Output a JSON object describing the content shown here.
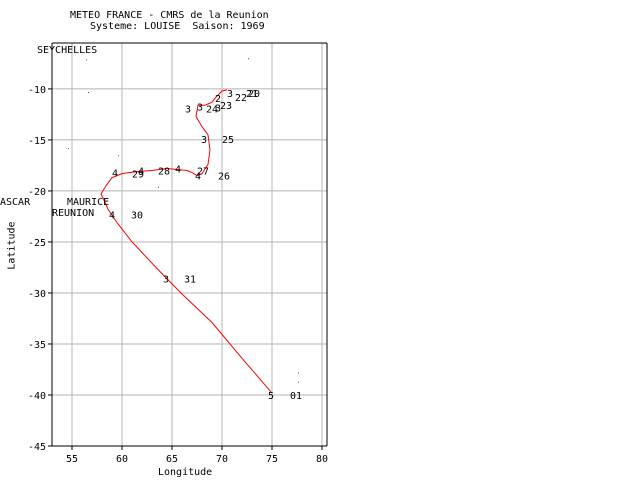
{
  "header": {
    "line1": "METEO FRANCE - CMRS de la Reunion",
    "line2": "Systeme: LOUISE  Saison: 1969"
  },
  "axes": {
    "xlabel": "Longitude",
    "ylabel": "Latitude",
    "xlim": [
      53,
      80.5
    ],
    "ylim": [
      -45,
      -5.5
    ],
    "xticks": [
      55,
      60,
      65,
      70,
      75,
      80
    ],
    "yticks": [
      -10,
      -15,
      -20,
      -25,
      -30,
      -35,
      -40,
      -45
    ],
    "grid": true
  },
  "places": [
    {
      "name": "SEYCHELLES",
      "lon": 55.5,
      "lat": -4.6
    },
    {
      "name": "MAURICE",
      "lon": 57.5,
      "lat": -20.2
    },
    {
      "name": "REUNION",
      "lon": 55.5,
      "lat": -21.1
    },
    {
      "name": "ASCAR",
      "lon": 47.5,
      "lat": -19.5
    }
  ],
  "colors": {
    "track": "#ff0000",
    "grid": "#b4b4b4",
    "axis": "#000000",
    "text": "#000000"
  },
  "chart_data": {
    "type": "map-track",
    "track": [
      [
        74.9,
        -39.7
      ],
      [
        72.0,
        -36.4
      ],
      [
        69.0,
        -32.9
      ],
      [
        66.0,
        -30.1
      ],
      [
        63.5,
        -27.6
      ],
      [
        61.0,
        -25.0
      ],
      [
        59.5,
        -23.1
      ],
      [
        58.6,
        -21.8
      ],
      [
        58.3,
        -21.1
      ],
      [
        57.9,
        -20.3
      ],
      [
        58.4,
        -19.5
      ],
      [
        59.0,
        -18.7
      ],
      [
        60.0,
        -18.3
      ],
      [
        61.5,
        -18.1
      ],
      [
        63.0,
        -18.0
      ],
      [
        64.5,
        -17.8
      ],
      [
        65.5,
        -17.9
      ],
      [
        66.5,
        -18.0
      ],
      [
        67.0,
        -18.2
      ],
      [
        67.5,
        -18.5
      ],
      [
        68.0,
        -18.3
      ],
      [
        68.6,
        -17.4
      ],
      [
        68.8,
        -16.0
      ],
      [
        68.6,
        -14.5
      ],
      [
        68.0,
        -13.7
      ],
      [
        67.4,
        -12.7
      ],
      [
        67.6,
        -11.6
      ],
      [
        68.3,
        -11.6
      ],
      [
        69.0,
        -11.3
      ],
      [
        69.4,
        -10.8
      ],
      [
        70.0,
        -10.2
      ],
      [
        70.5,
        -10.1
      ]
    ],
    "time_labels": [
      {
        "text": "5",
        "lon": 74.9,
        "lat": -40.0
      },
      {
        "text": "3",
        "lon": 64.4,
        "lat": -28.6
      },
      {
        "text": "4",
        "lon": 59.0,
        "lat": -22.3
      },
      {
        "text": "4",
        "lon": 59.3,
        "lat": -18.2
      },
      {
        "text": "4",
        "lon": 61.9,
        "lat": -18.0
      },
      {
        "text": "4",
        "lon": 65.6,
        "lat": -17.8
      },
      {
        "text": "4",
        "lon": 67.6,
        "lat": -18.5
      },
      {
        "text": "3",
        "lon": 68.2,
        "lat": -14.9
      },
      {
        "text": "3",
        "lon": 66.6,
        "lat": -11.9
      },
      {
        "text": "3",
        "lon": 67.8,
        "lat": -11.7
      },
      {
        "text": "3",
        "lon": 69.6,
        "lat": -11.8
      },
      {
        "text": "2",
        "lon": 69.6,
        "lat": -10.9
      },
      {
        "text": "3",
        "lon": 70.8,
        "lat": -10.4
      }
    ],
    "day_labels": [
      {
        "text": "01",
        "lon": 77.4,
        "lat": -40.0
      },
      {
        "text": "31",
        "lon": 66.8,
        "lat": -28.6
      },
      {
        "text": "30",
        "lon": 61.5,
        "lat": -22.3
      },
      {
        "text": "29",
        "lon": 61.6,
        "lat": -18.3
      },
      {
        "text": "28",
        "lon": 64.2,
        "lat": -18.0
      },
      {
        "text": "27",
        "lon": 68.1,
        "lat": -18.0
      },
      {
        "text": "26",
        "lon": 70.2,
        "lat": -18.5
      },
      {
        "text": "25",
        "lon": 70.6,
        "lat": -14.9
      },
      {
        "text": "24",
        "lon": 69.0,
        "lat": -11.9
      },
      {
        "text": "23",
        "lon": 70.4,
        "lat": -11.6
      },
      {
        "text": "22",
        "lon": 71.9,
        "lat": -10.8
      },
      {
        "text": "21",
        "lon": 73.0,
        "lat": -10.4
      },
      {
        "text": "20",
        "lon": 73.2,
        "lat": -10.4
      }
    ],
    "specks": [
      [
        56.4,
        -7.1
      ],
      [
        56.6,
        -10.3
      ],
      [
        54.6,
        -15.8
      ],
      [
        59.6,
        -16.5
      ],
      [
        63.6,
        -19.6
      ],
      [
        72.6,
        -7.0
      ],
      [
        77.6,
        -37.8
      ],
      [
        77.6,
        -38.7
      ]
    ]
  }
}
